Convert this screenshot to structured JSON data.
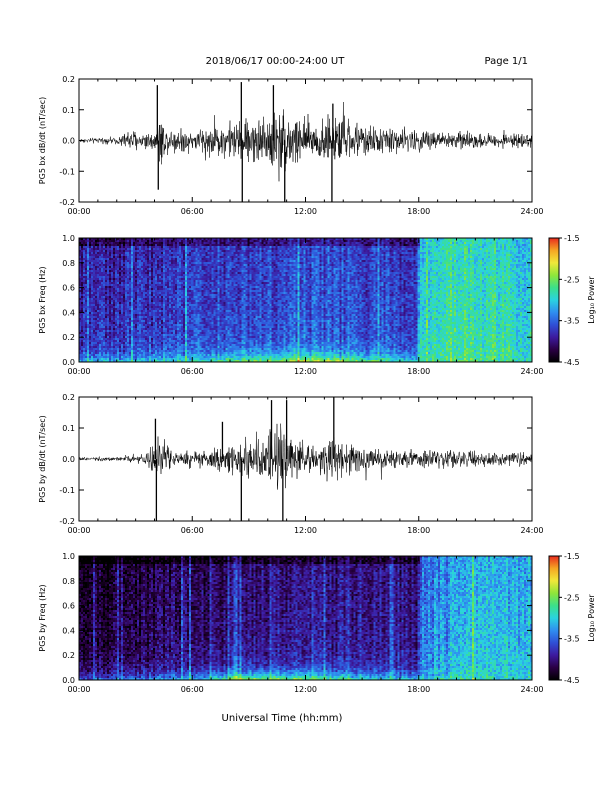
{
  "header": {
    "title": "2018/06/17  00:00-24:00 UT",
    "page": "Page 1/1"
  },
  "xlabel": "Universal Time (hh:mm)",
  "colors": {
    "trace": "#000000",
    "colormap": [
      "#000000",
      "#2a0044",
      "#3d1a9e",
      "#2f4fd6",
      "#2f8ef0",
      "#2ad3e0",
      "#3ce08a",
      "#8fe63a",
      "#f0e83a",
      "#f5a623",
      "#e82b1e"
    ]
  },
  "chart_data": [
    {
      "type": "line",
      "panel": "bx-waveform",
      "ylabel": "PG5 bx dB/dt (nT/sec)",
      "xlim": [
        0,
        24
      ],
      "ylim": [
        -0.2,
        0.2
      ],
      "xticks": [
        "00:00",
        "06:00",
        "12:00",
        "18:00",
        "24:00"
      ],
      "yticks": [
        "0.2",
        "0.1",
        "0.0",
        "-0.1",
        "-0.2"
      ],
      "ytick_values": [
        0.2,
        0.1,
        0.0,
        -0.1,
        -0.2
      ],
      "envelope": {
        "hours": [
          0,
          2,
          2.6,
          4.0,
          4.3,
          4.6,
          6,
          7,
          8.5,
          9.5,
          10.5,
          11.3,
          12,
          13,
          13.6,
          15,
          16,
          17,
          18,
          20,
          22,
          24
        ],
        "amplitude": [
          0.01,
          0.015,
          0.05,
          0.04,
          0.12,
          0.06,
          0.05,
          0.07,
          0.09,
          0.11,
          0.15,
          0.14,
          0.1,
          0.1,
          0.12,
          0.07,
          0.06,
          0.06,
          0.05,
          0.04,
          0.03,
          0.03
        ]
      },
      "spikes": [
        {
          "hour": 4.15,
          "value": 0.18
        },
        {
          "hour": 4.2,
          "value": -0.16
        },
        {
          "hour": 8.6,
          "value": 0.19
        },
        {
          "hour": 8.65,
          "value": -0.2
        },
        {
          "hour": 10.3,
          "value": 0.18
        },
        {
          "hour": 10.9,
          "value": -0.2
        },
        {
          "hour": 13.4,
          "value": -0.2
        },
        {
          "hour": 13.45,
          "value": 0.12
        }
      ]
    },
    {
      "type": "heatmap",
      "panel": "bx-spectrogram",
      "ylabel": "PG5 bx Freq (Hz)",
      "xlim": [
        0,
        24
      ],
      "ylim": [
        0,
        1
      ],
      "xticks": [
        "00:00",
        "06:00",
        "12:00",
        "18:00",
        "24:00"
      ],
      "yticks": [
        "1.0",
        "0.8",
        "0.6",
        "0.4",
        "0.2",
        "0.0"
      ],
      "ytick_values": [
        1.0,
        0.8,
        0.6,
        0.4,
        0.2,
        0.0
      ],
      "colorbar": {
        "label": "Log₁₀ Power",
        "range": [
          -4.5,
          -1.5
        ],
        "ticks": [
          "-1.5",
          "-2.5",
          "-3.5",
          "-4.5"
        ],
        "tick_values": [
          -1.5,
          -2.5,
          -3.5,
          -4.5
        ]
      },
      "profile": {
        "hours": [
          0,
          3,
          6,
          9,
          12,
          15,
          17.9,
          18.1,
          20,
          22,
          24
        ],
        "background_log_power": [
          -3.8,
          -3.75,
          -3.6,
          -3.55,
          -3.5,
          -3.55,
          -3.6,
          -2.9,
          -2.7,
          -2.8,
          -2.9
        ],
        "low_freq_log_power": [
          -3.2,
          -3.1,
          -2.9,
          -2.5,
          -2.3,
          -2.6,
          -3.0,
          -2.8,
          -2.6,
          -2.7,
          -2.8
        ]
      }
    },
    {
      "type": "line",
      "panel": "by-waveform",
      "ylabel": "PG5 by dB/dt (nT/sec)",
      "xlim": [
        0,
        24
      ],
      "ylim": [
        -0.2,
        0.2
      ],
      "xticks": [
        "00:00",
        "06:00",
        "12:00",
        "18:00",
        "24:00"
      ],
      "yticks": [
        "0.2",
        "0.1",
        "0.0",
        "-0.1",
        "-0.2"
      ],
      "ytick_values": [
        0.2,
        0.1,
        0.0,
        -0.1,
        -0.2
      ],
      "envelope": {
        "hours": [
          0,
          2,
          3.5,
          4.2,
          4.6,
          5,
          6,
          7.5,
          8.5,
          9.5,
          10.5,
          11,
          11.5,
          12,
          13,
          13.5,
          15,
          17,
          18,
          20,
          22,
          24
        ],
        "amplitude": [
          0.008,
          0.01,
          0.02,
          0.1,
          0.06,
          0.03,
          0.04,
          0.05,
          0.07,
          0.1,
          0.16,
          0.14,
          0.1,
          0.07,
          0.08,
          0.1,
          0.05,
          0.04,
          0.04,
          0.04,
          0.03,
          0.025
        ]
      },
      "spikes": [
        {
          "hour": 4.05,
          "value": 0.13
        },
        {
          "hour": 4.1,
          "value": -0.2
        },
        {
          "hour": 7.6,
          "value": 0.12
        },
        {
          "hour": 8.6,
          "value": -0.2
        },
        {
          "hour": 10.2,
          "value": 0.19
        },
        {
          "hour": 10.8,
          "value": -0.2
        },
        {
          "hour": 11.0,
          "value": 0.19
        },
        {
          "hour": 13.5,
          "value": 0.2
        }
      ]
    },
    {
      "type": "heatmap",
      "panel": "by-spectrogram",
      "ylabel": "PG5 by Freq (Hz)",
      "xlim": [
        0,
        24
      ],
      "ylim": [
        0,
        1
      ],
      "xticks": [
        "00:00",
        "06:00",
        "12:00",
        "18:00",
        "24:00"
      ],
      "yticks": [
        "1.0",
        "0.8",
        "0.6",
        "0.4",
        "0.2",
        "0.0"
      ],
      "ytick_values": [
        1.0,
        0.8,
        0.6,
        0.4,
        0.2,
        0.0
      ],
      "colorbar": {
        "label": "Log₁₀ Power",
        "range": [
          -4.5,
          -1.5
        ],
        "ticks": [
          "-1.5",
          "-2.5",
          "-3.5",
          "-4.5"
        ],
        "tick_values": [
          -1.5,
          -2.5,
          -3.5,
          -4.5
        ]
      },
      "profile": {
        "hours": [
          0,
          3,
          6,
          9,
          12,
          15,
          17.9,
          18.1,
          20,
          22,
          24
        ],
        "background_log_power": [
          -4.2,
          -4.15,
          -4.0,
          -3.9,
          -3.85,
          -3.85,
          -3.9,
          -3.3,
          -3.2,
          -3.0,
          -3.1
        ],
        "low_freq_log_power": [
          -3.6,
          -3.5,
          -3.2,
          -2.4,
          -2.6,
          -2.9,
          -3.2,
          -3.0,
          -2.9,
          -2.9,
          -3.0
        ]
      }
    }
  ]
}
